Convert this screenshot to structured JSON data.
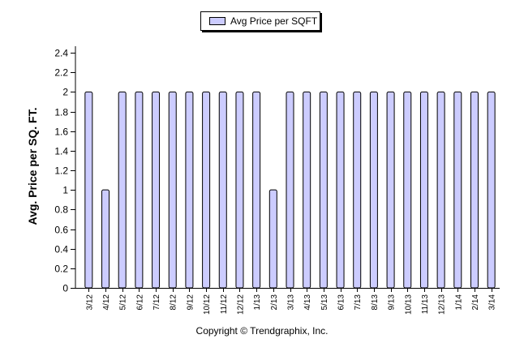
{
  "chart_data": {
    "type": "bar",
    "legend": "Avg Price per SQFT",
    "ylabel": "Avg. Price per SQ. FT.",
    "xlabel": "",
    "ylim": [
      0,
      2.4
    ],
    "yticks": [
      "0",
      "0.2",
      "0.4",
      "0.6",
      "0.8",
      "1",
      "1.2",
      "1.4",
      "1.6",
      "1.8",
      "2",
      "2.2",
      "2.4"
    ],
    "categories": [
      "3/12",
      "4/12",
      "5/12",
      "6/12",
      "7/12",
      "8/12",
      "9/12",
      "10/12",
      "11/12",
      "12/12",
      "1/13",
      "2/13",
      "3/13",
      "4/13",
      "5/13",
      "6/13",
      "7/13",
      "8/13",
      "9/13",
      "10/13",
      "11/13",
      "12/13",
      "1/14",
      "2/14",
      "3/14"
    ],
    "series": [
      {
        "name": "Avg Price per SQFT",
        "values": [
          2,
          1,
          2,
          2,
          2,
          2,
          2,
          2,
          2,
          2,
          2,
          1,
          2,
          2,
          2,
          2,
          2,
          2,
          2,
          2,
          2,
          2,
          2,
          2,
          2
        ]
      }
    ],
    "bar_color": "#ccccff",
    "legend_position": "top-center",
    "grid": false
  },
  "footer": {
    "copyright": "Copyright © Trendgraphix, Inc."
  }
}
